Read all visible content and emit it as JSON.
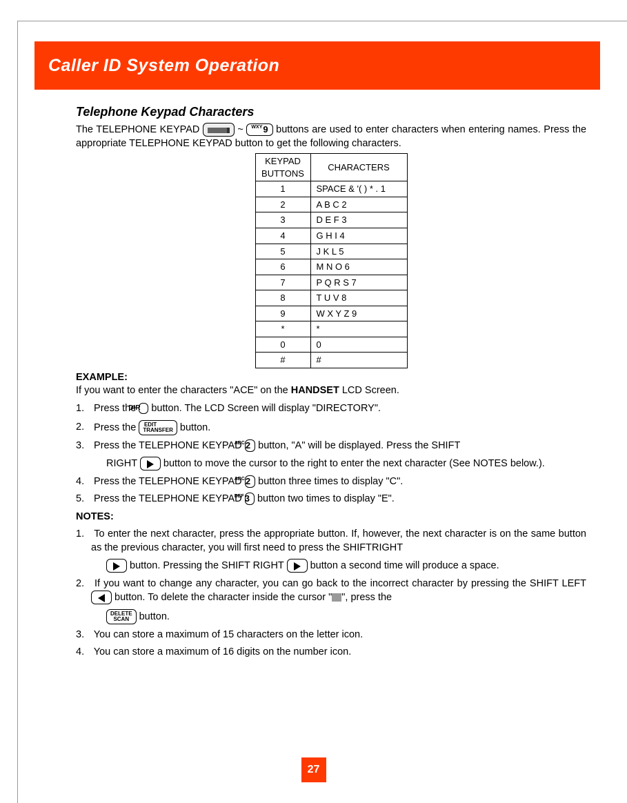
{
  "header": {
    "title": "Caller ID System Operation"
  },
  "section_title": "Telephone Keypad Characters",
  "intro": {
    "part1": "The TELEPHONE KEYPAD ",
    "tilde": " ~ ",
    "part2": " buttons are used to enter characters when entering names. Press the appropriate TELEPHONE KEYPAD button to get the following characters."
  },
  "btn_wxy9_sup": "WXY",
  "btn_wxy9_num": "9",
  "table": {
    "head_key": "KEYPAD BUTTONS",
    "head_chars": "CHARACTERS",
    "rows": [
      {
        "k": "1",
        "c": "SPACE & '( ) * . 1"
      },
      {
        "k": "2",
        "c": "A B C 2"
      },
      {
        "k": "3",
        "c": "D E F 3"
      },
      {
        "k": "4",
        "c": "G H I 4"
      },
      {
        "k": "5",
        "c": "J K L 5"
      },
      {
        "k": "6",
        "c": "M N O 6"
      },
      {
        "k": "7",
        "c": "P Q R S 7"
      },
      {
        "k": "8",
        "c": "T U V 8"
      },
      {
        "k": "9",
        "c": "W X Y Z 9"
      },
      {
        "k": "*",
        "c": "*"
      },
      {
        "k": "0",
        "c": "0"
      },
      {
        "k": "#",
        "c": "#"
      }
    ]
  },
  "example_label": "EXAMPLE:",
  "example_intro_a": "If you want to enter the characters \"ACE\" on the ",
  "example_intro_bold": "HANDSET",
  "example_intro_b": " LCD Screen.",
  "btn_dir": "DIR",
  "btn_edit_l1": "EDIT",
  "btn_edit_l2": "TRANSFER",
  "btn_abc2_sup": "ABC",
  "btn_abc2_num": "2",
  "btn_def3_sup": "DEF",
  "btn_def3_num": "3",
  "btn_del_l1": "DELETE",
  "btn_del_l2": "SCAN",
  "steps": {
    "s1a": "Press the ",
    "s1b": " button. The LCD Screen will display \"DIRECTORY\".",
    "s2a": "Press the ",
    "s2b": " button.",
    "s3a": "Press the TELEPHONE KEYPAD  ",
    "s3b": "  button, \"A\" will be displayed. Press the SHIFT",
    "s3c": "RIGHT ",
    "s3d": "  button to move the cursor to the right to enter the next character (See NOTES below.).",
    "s4a": "Press the TELEPHONE KEYPAD   ",
    "s4b": " button three times to display \"C\".",
    "s5a": "Press the TELEPHONE KEYPAD   ",
    "s5b": "  button two times to display \"E\"."
  },
  "notes_label": "NOTES:",
  "notes": {
    "n1a": "To enter the next character, press the appropriate button. If, however, the next character is on the same button as the previous character, you will first need to press the SHIFTRIGHT",
    "n1b": "  button. Pressing the SHIFT RIGHT ",
    "n1c": "  button a second time will produce a space.",
    "n2a": "If you want to change any character, you can go back to the incorrect character by pressing the SHIFT LEFT ",
    "n2b": "  button. To delete the character inside the cursor \"",
    "n2c": "\", press the",
    "n2d": " button.",
    "n3": "You can store a maximum of 15 characters on the letter icon.",
    "n4": "You can store a maximum of 16 digits on the number icon."
  },
  "page_number": "27",
  "colors": {
    "accent": "#ff3a00"
  }
}
